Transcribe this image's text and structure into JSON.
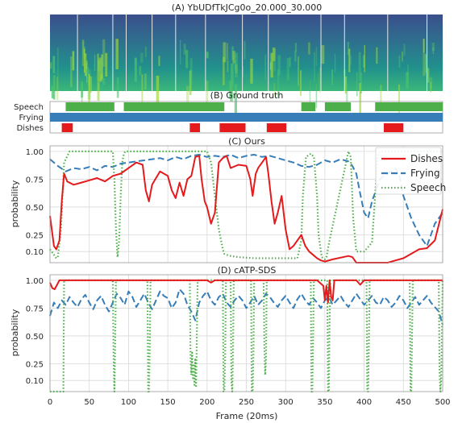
{
  "colors": {
    "dishes": "#e41a1c",
    "frying": "#377eb8",
    "speech": "#4daf4a",
    "grid": "#d9d9d9"
  },
  "x_axis": {
    "label": "Frame (20ms)",
    "ticks": [
      "0",
      "50",
      "100",
      "150",
      "200",
      "250",
      "300",
      "350",
      "400",
      "450",
      "500"
    ]
  },
  "chart_data": [
    {
      "type": "heatmap",
      "title": "(A) YbUDfTkJCg0o_20.000_30.000",
      "frame_boundaries": [
        35,
        80,
        97,
        130,
        160,
        198,
        245,
        278,
        345,
        375,
        430,
        480
      ]
    },
    {
      "type": "bar",
      "title": "(B) Ground truth",
      "xlim": [
        0,
        500
      ],
      "rows": [
        {
          "name": "Speech",
          "segments": [
            [
              20,
              82
            ],
            [
              94,
              222
            ],
            [
              320,
              338
            ],
            [
              350,
              383
            ],
            [
              414,
              500
            ]
          ]
        },
        {
          "name": "Frying",
          "segments": [
            [
              0,
              500
            ]
          ]
        },
        {
          "name": "Dishes",
          "segments": [
            [
              15,
              29
            ],
            [
              178,
              191
            ],
            [
              216,
              249
            ],
            [
              276,
              301
            ],
            [
              425,
              450
            ]
          ]
        }
      ]
    },
    {
      "type": "line",
      "title": "(C) Ours",
      "ylabel": "probability",
      "xlim": [
        0,
        500
      ],
      "ylim": [
        0,
        1.05
      ],
      "yticks": [
        "0.10",
        "0.25",
        "0.50",
        "0.75",
        "1.00"
      ],
      "legend": "top-right",
      "series": [
        {
          "name": "Dishes",
          "style": "solid",
          "x": [
            0,
            5,
            8,
            12,
            15,
            18,
            22,
            30,
            40,
            50,
            60,
            70,
            80,
            90,
            100,
            110,
            118,
            122,
            126,
            130,
            140,
            150,
            155,
            160,
            165,
            170,
            175,
            180,
            185,
            190,
            193,
            197,
            200,
            205,
            210,
            215,
            220,
            225,
            230,
            240,
            250,
            255,
            258,
            262,
            265,
            270,
            275,
            278,
            282,
            286,
            290,
            295,
            300,
            305,
            310,
            320,
            325,
            330,
            335,
            340,
            345,
            350,
            360,
            380,
            385,
            390,
            400,
            420,
            430,
            440,
            450,
            460,
            470,
            480,
            490,
            500
          ],
          "y": [
            0.42,
            0.15,
            0.12,
            0.2,
            0.55,
            0.8,
            0.73,
            0.7,
            0.72,
            0.74,
            0.76,
            0.73,
            0.78,
            0.8,
            0.85,
            0.9,
            0.88,
            0.65,
            0.55,
            0.7,
            0.82,
            0.78,
            0.65,
            0.58,
            0.72,
            0.6,
            0.75,
            0.78,
            0.95,
            0.96,
            0.75,
            0.55,
            0.5,
            0.35,
            0.45,
            0.9,
            0.94,
            0.96,
            0.85,
            0.88,
            0.87,
            0.75,
            0.6,
            0.8,
            0.85,
            0.9,
            0.95,
            0.8,
            0.55,
            0.35,
            0.45,
            0.6,
            0.3,
            0.12,
            0.15,
            0.25,
            0.15,
            0.1,
            0.07,
            0.04,
            0.02,
            0.01,
            0.03,
            0.06,
            0.05,
            0.0,
            0.0,
            0.0,
            0.0,
            0.02,
            0.04,
            0.08,
            0.12,
            0.13,
            0.2,
            0.48
          ]
        },
        {
          "name": "Frying",
          "style": "dashed",
          "x": [
            0,
            10,
            20,
            30,
            40,
            50,
            60,
            70,
            80,
            90,
            100,
            110,
            120,
            130,
            140,
            150,
            160,
            170,
            180,
            190,
            200,
            210,
            220,
            230,
            240,
            250,
            260,
            270,
            280,
            290,
            300,
            310,
            320,
            330,
            340,
            350,
            360,
            370,
            380,
            385,
            390,
            395,
            400,
            405,
            410,
            420,
            430,
            440,
            445,
            450,
            455,
            460,
            470,
            480,
            490,
            500
          ],
          "y": [
            0.93,
            0.87,
            0.82,
            0.85,
            0.84,
            0.86,
            0.83,
            0.87,
            0.86,
            0.89,
            0.9,
            0.91,
            0.92,
            0.93,
            0.94,
            0.92,
            0.95,
            0.93,
            0.96,
            0.97,
            0.95,
            0.96,
            0.95,
            0.97,
            0.94,
            0.96,
            0.97,
            0.95,
            0.96,
            0.94,
            0.92,
            0.9,
            0.87,
            0.86,
            0.88,
            0.92,
            0.9,
            0.93,
            0.91,
            0.87,
            0.8,
            0.62,
            0.45,
            0.4,
            0.55,
            0.75,
            0.8,
            0.85,
            0.78,
            0.6,
            0.5,
            0.4,
            0.25,
            0.15,
            0.35,
            0.45
          ]
        },
        {
          "name": "Speech",
          "style": "dotted",
          "x": [
            0,
            5,
            8,
            10,
            14,
            18,
            25,
            40,
            60,
            80,
            82,
            84,
            86,
            88,
            90,
            92,
            94,
            96,
            100,
            150,
            200,
            205,
            210,
            215,
            220,
            222,
            225,
            230,
            240,
            260,
            280,
            300,
            315,
            320,
            322,
            326,
            332,
            336,
            340,
            342,
            346,
            350,
            352,
            356,
            380,
            383,
            386,
            390,
            400,
            410,
            414,
            417,
            420,
            440,
            460,
            480,
            500
          ],
          "y": [
            0.12,
            0.07,
            0.04,
            0.05,
            0.3,
            0.9,
            1.0,
            1.0,
            1.0,
            1.0,
            0.75,
            0.3,
            0.05,
            0.2,
            0.6,
            0.9,
            0.98,
            1.0,
            1.0,
            1.0,
            1.0,
            0.9,
            0.6,
            0.3,
            0.12,
            0.08,
            0.07,
            0.06,
            0.05,
            0.04,
            0.04,
            0.04,
            0.04,
            0.2,
            0.6,
            0.95,
            0.98,
            0.95,
            0.6,
            0.25,
            0.05,
            0.03,
            0.05,
            0.2,
            1.0,
            0.95,
            0.4,
            0.1,
            0.1,
            0.18,
            0.6,
            0.95,
            1.0,
            1.0,
            1.0,
            1.0,
            1.0
          ]
        }
      ]
    },
    {
      "type": "line",
      "title": "(D) cATP-SDS",
      "ylabel": "probability",
      "xlim": [
        0,
        500
      ],
      "ylim": [
        0,
        1.05
      ],
      "yticks": [
        "0.10",
        "0.25",
        "0.50",
        "0.75",
        "1.00"
      ],
      "series": [
        {
          "name": "Dishes",
          "style": "solid",
          "x": [
            0,
            3,
            6,
            9,
            12,
            50,
            100,
            150,
            200,
            205,
            210,
            215,
            225,
            250,
            280,
            300,
            340,
            348,
            350,
            352,
            354,
            356,
            358,
            360,
            362,
            370,
            390,
            395,
            400,
            450,
            500
          ],
          "y": [
            0.98,
            0.93,
            0.92,
            0.96,
            1.0,
            1.0,
            1.0,
            1.0,
            1.0,
            0.98,
            1.0,
            1.0,
            1.0,
            1.0,
            1.0,
            1.0,
            1.0,
            0.95,
            0.82,
            0.95,
            0.8,
            1.0,
            0.85,
            0.82,
            1.0,
            1.0,
            1.0,
            0.96,
            1.0,
            1.0,
            1.0
          ]
        },
        {
          "name": "Frying",
          "style": "dashed",
          "x": [
            0,
            5,
            10,
            15,
            20,
            25,
            30,
            35,
            40,
            45,
            50,
            55,
            60,
            65,
            70,
            75,
            80,
            85,
            90,
            95,
            100,
            105,
            110,
            115,
            120,
            125,
            130,
            135,
            140,
            145,
            150,
            155,
            160,
            165,
            170,
            175,
            180,
            185,
            190,
            195,
            200,
            205,
            210,
            215,
            220,
            225,
            230,
            235,
            240,
            245,
            250,
            255,
            260,
            265,
            270,
            275,
            280,
            285,
            290,
            295,
            300,
            305,
            310,
            315,
            320,
            325,
            330,
            335,
            340,
            345,
            350,
            355,
            360,
            365,
            370,
            375,
            380,
            385,
            390,
            395,
            400,
            405,
            410,
            415,
            420,
            425,
            430,
            435,
            440,
            445,
            450,
            455,
            460,
            465,
            470,
            475,
            480,
            485,
            490,
            495,
            500
          ],
          "y": [
            0.68,
            0.8,
            0.75,
            0.82,
            0.78,
            0.85,
            0.8,
            0.76,
            0.83,
            0.87,
            0.8,
            0.74,
            0.82,
            0.86,
            0.78,
            0.72,
            0.8,
            0.88,
            0.84,
            0.78,
            0.9,
            0.85,
            0.76,
            0.82,
            0.88,
            0.8,
            0.74,
            0.82,
            0.9,
            0.86,
            0.84,
            0.75,
            0.8,
            0.92,
            0.88,
            0.78,
            0.72,
            0.64,
            0.8,
            0.86,
            0.9,
            0.82,
            0.78,
            0.85,
            0.88,
            0.8,
            0.76,
            0.82,
            0.86,
            0.82,
            0.75,
            0.8,
            0.86,
            0.78,
            0.82,
            0.88,
            0.85,
            0.8,
            0.76,
            0.82,
            0.86,
            0.8,
            0.75,
            0.83,
            0.88,
            0.82,
            0.78,
            0.84,
            0.8,
            0.75,
            0.82,
            0.85,
            0.78,
            0.82,
            0.86,
            0.8,
            0.76,
            0.82,
            0.88,
            0.83,
            0.78,
            0.82,
            0.86,
            0.8,
            0.78,
            0.85,
            0.82,
            0.76,
            0.8,
            0.86,
            0.82,
            0.75,
            0.8,
            0.85,
            0.78,
            0.82,
            0.86,
            0.8,
            0.76,
            0.72,
            0.6
          ]
        },
        {
          "name": "Speech",
          "style": "dotted",
          "x": [
            0,
            17,
            18,
            19,
            80,
            81,
            82,
            83,
            84,
            124,
            125,
            126,
            127,
            128,
            178,
            179,
            180,
            181,
            182,
            183,
            184,
            185,
            186,
            187,
            188,
            220,
            221,
            222,
            223,
            224,
            230,
            231,
            232,
            233,
            234,
            256,
            257,
            258,
            259,
            260,
            272,
            273,
            274,
            275,
            276,
            332,
            333,
            334,
            335,
            336,
            353,
            354,
            355,
            356,
            357,
            403,
            404,
            405,
            406,
            407,
            458,
            459,
            460,
            461,
            462,
            495,
            496,
            497,
            498,
            499,
            500
          ],
          "y": [
            0.0,
            0.0,
            1.0,
            1.0,
            1.0,
            0.3,
            0.0,
            0.4,
            1.0,
            1.0,
            0.0,
            0.0,
            0.4,
            1.0,
            1.0,
            0.3,
            0.15,
            0.35,
            0.12,
            0.25,
            0.06,
            0.3,
            0.05,
            0.5,
            1.0,
            1.0,
            0.0,
            0.0,
            0.3,
            1.0,
            1.0,
            0.1,
            0.0,
            0.3,
            1.0,
            1.0,
            0.0,
            0.0,
            0.35,
            1.0,
            1.0,
            0.4,
            0.15,
            0.3,
            1.0,
            1.0,
            0.0,
            0.0,
            0.5,
            1.0,
            1.0,
            0.0,
            0.0,
            0.6,
            1.0,
            1.0,
            0.0,
            0.0,
            0.4,
            1.0,
            1.0,
            0.0,
            0.0,
            0.5,
            1.0,
            1.0,
            0.2,
            0.0,
            0.1,
            0.5,
            1.0
          ]
        }
      ]
    }
  ]
}
